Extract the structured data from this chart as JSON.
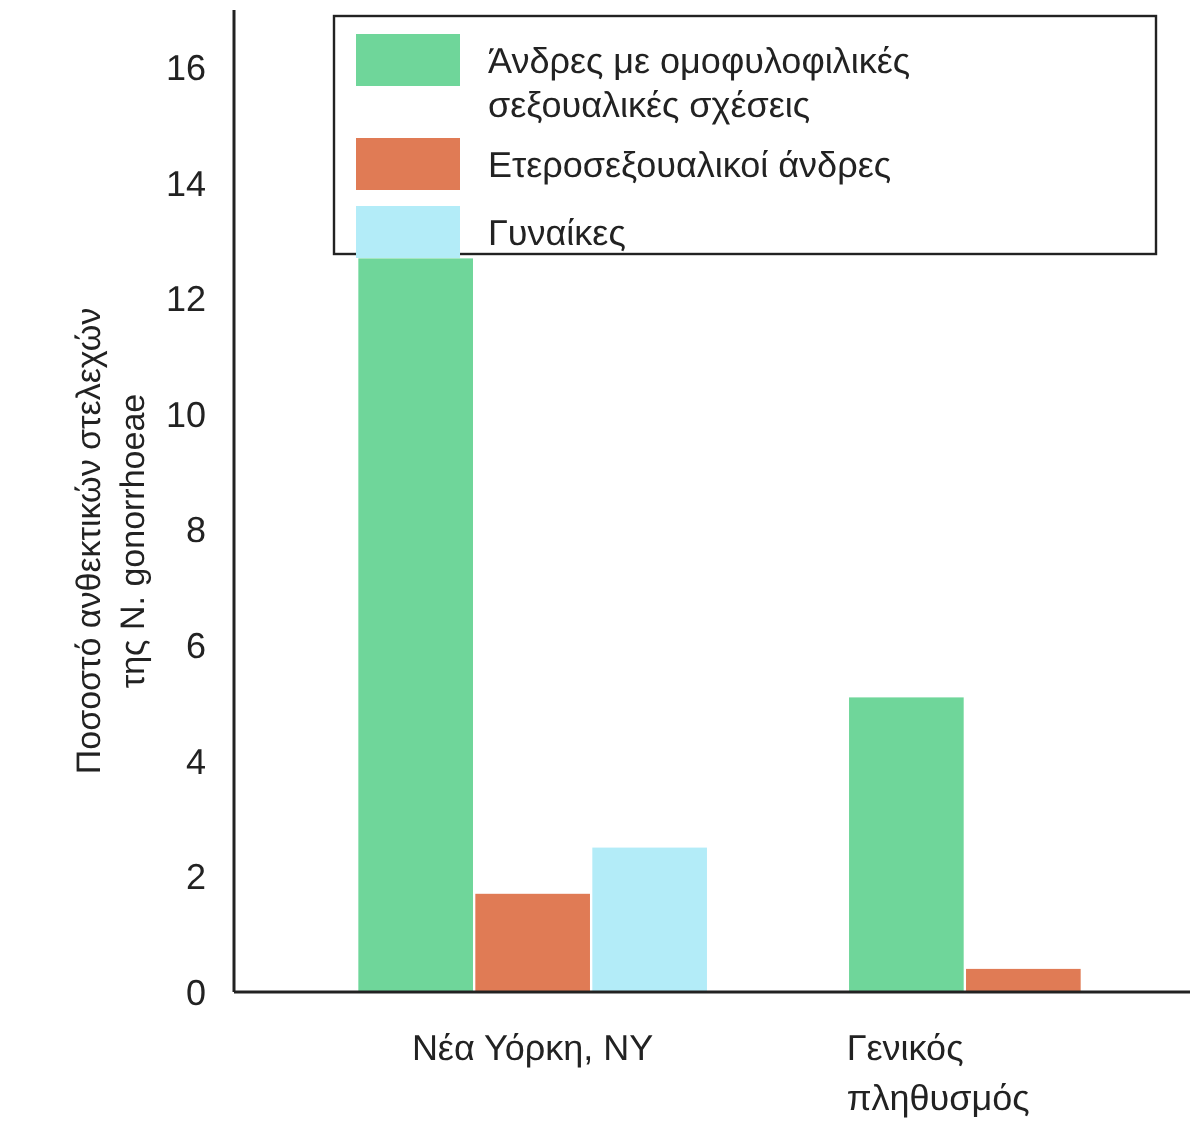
{
  "chart_data": {
    "type": "bar",
    "ylabel": "Ποσοστό ανθεκτικών στελεχών της N. gonorrhoeae",
    "categories": [
      "Νέα Υόρκη, ΝΥ",
      "Γενικός πληθυσμός"
    ],
    "series": [
      {
        "name": "Άνδρες με ομοφυλοφιλικές σεξουαλικές σχέσεις",
        "color": "#6fd69a",
        "values": [
          12.7,
          5.1
        ]
      },
      {
        "name": "Ετεροσεξουαλικοί άνδρες",
        "color": "#e07b55",
        "values": [
          1.7,
          0.4
        ]
      },
      {
        "name": "Γυναίκες",
        "color": "#b3ecf8",
        "values": [
          2.5,
          null
        ]
      }
    ],
    "ylim": [
      0,
      17
    ],
    "yticks": [
      0,
      2,
      4,
      6,
      8,
      10,
      12,
      14,
      16
    ],
    "legend": "top"
  }
}
